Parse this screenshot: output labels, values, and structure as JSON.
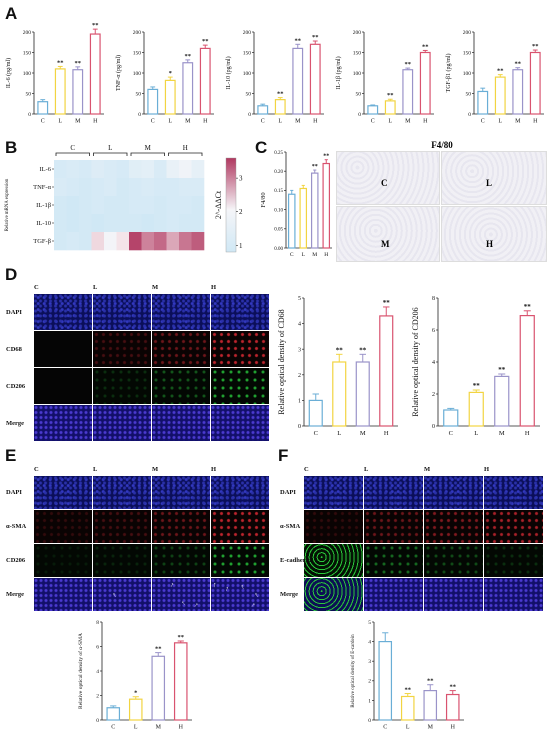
{
  "panels": {
    "A": "A",
    "B": "B",
    "C": "C",
    "D": "D",
    "E": "E",
    "F": "F"
  },
  "groups": [
    "C",
    "L",
    "M",
    "H"
  ],
  "colors": {
    "C": "#6aaed6",
    "L": "#f2d441",
    "M": "#9a93c9",
    "H": "#d9536f"
  },
  "panel_a_charts": [
    {
      "type": "bar",
      "categories": [
        "C",
        "L",
        "M",
        "H"
      ],
      "values": [
        30,
        110,
        108,
        195
      ],
      "errors": [
        5,
        6,
        7,
        12
      ],
      "sig": [
        "",
        "**",
        "**",
        "**"
      ],
      "ylabel": "IL-6 (pg/ml)",
      "yticks": [
        0,
        50,
        100,
        150,
        200
      ],
      "ylim": [
        0,
        200
      ]
    },
    {
      "type": "bar",
      "categories": [
        "C",
        "L",
        "M",
        "H"
      ],
      "values": [
        60,
        82,
        125,
        160
      ],
      "errors": [
        6,
        8,
        7,
        8
      ],
      "sig": [
        "",
        "*",
        "**",
        "**"
      ],
      "ylabel": "TNF-α (pg/ml)",
      "yticks": [
        0,
        50,
        100,
        150,
        200
      ],
      "ylim": [
        0,
        200
      ]
    },
    {
      "type": "bar",
      "categories": [
        "C",
        "L",
        "M",
        "H"
      ],
      "values": [
        20,
        35,
        160,
        170
      ],
      "errors": [
        4,
        5,
        10,
        8
      ],
      "sig": [
        "",
        "**",
        "**",
        "**"
      ],
      "ylabel": "IL-10 (pg/ml)",
      "yticks": [
        0,
        50,
        100,
        150,
        200
      ],
      "ylim": [
        0,
        200
      ]
    },
    {
      "type": "bar",
      "categories": [
        "C",
        "L",
        "M",
        "H"
      ],
      "values": [
        20,
        32,
        108,
        150
      ],
      "errors": [
        2,
        4,
        4,
        5
      ],
      "sig": [
        "",
        "**",
        "**",
        "**"
      ],
      "ylabel": "IL-1β (pg/ml)",
      "yticks": [
        0,
        50,
        100,
        150,
        200
      ],
      "ylim": [
        0,
        200
      ]
    },
    {
      "type": "bar",
      "categories": [
        "C",
        "L",
        "M",
        "H"
      ],
      "values": [
        55,
        90,
        108,
        150
      ],
      "errors": [
        8,
        6,
        5,
        6
      ],
      "sig": [
        "",
        "**",
        "**",
        "**"
      ],
      "ylabel": "TGF-β1 (pg/ml)",
      "yticks": [
        0,
        50,
        100,
        150,
        200
      ],
      "ylim": [
        0,
        200
      ]
    }
  ],
  "panel_b": {
    "chart_data": {
      "type": "heatmap",
      "rows": [
        "IL-6",
        "TNF-α",
        "IL-1β",
        "IL-10",
        "TGF-β"
      ],
      "group_labels": [
        "C",
        "L",
        "M",
        "H"
      ],
      "values": [
        [
          1.2,
          1.3,
          1.2,
          1.4,
          1.3,
          1.2,
          1.5,
          1.6,
          1.3,
          1.8,
          2.0,
          1.7
        ],
        [
          1.3,
          1.2,
          1.1,
          1.2,
          1.3,
          1.1,
          1.2,
          1.3,
          1.2,
          1.2,
          1.3,
          1.3
        ],
        [
          1.1,
          1.0,
          1.1,
          1.2,
          1.1,
          1.1,
          1.2,
          1.2,
          1.1,
          1.2,
          1.2,
          1.1
        ],
        [
          1.1,
          1.0,
          1.1,
          1.0,
          1.1,
          1.1,
          1.1,
          1.0,
          1.1,
          1.2,
          1.1,
          1.1
        ],
        [
          1.1,
          1.2,
          1.1,
          2.3,
          2.1,
          2.2,
          3.5,
          3.0,
          3.2,
          2.7,
          3.1,
          3.3
        ]
      ],
      "colorbar_ticks": [
        1,
        2,
        3
      ],
      "colorbar_label": "2^-ΔΔCt",
      "ylabel": "Relative mRNA expression"
    }
  },
  "panel_c": {
    "chart_data": {
      "type": "bar",
      "title": "F4/80",
      "categories": [
        "C",
        "L",
        "M",
        "H"
      ],
      "values": [
        0.14,
        0.155,
        0.195,
        0.22
      ],
      "errors": [
        0.01,
        0.008,
        0.008,
        0.01
      ],
      "sig": [
        "",
        "",
        "**",
        "**"
      ],
      "ylabel": "F4/80",
      "yticks": [
        0.0,
        0.05,
        0.1,
        0.15,
        0.2,
        0.25
      ],
      "ytick_labels": [
        "0.00",
        "0.05",
        "0.10",
        "0.15",
        "0.20",
        "0.25"
      ],
      "ylim": [
        0,
        0.25
      ]
    },
    "ihc_title": "F4/80",
    "ihc_labels": [
      "C",
      "L",
      "M",
      "H"
    ]
  },
  "panel_d": {
    "columns": [
      "C",
      "L",
      "M",
      "H"
    ],
    "rows": [
      "DAPI",
      "CD68",
      "CD206",
      "Merge"
    ],
    "charts": [
      {
        "type": "bar",
        "categories": [
          "C",
          "L",
          "M",
          "H"
        ],
        "values": [
          1.0,
          2.5,
          2.5,
          4.3
        ],
        "errors": [
          0.25,
          0.3,
          0.3,
          0.35
        ],
        "sig": [
          "",
          "**",
          "**",
          "**"
        ],
        "ylabel": "Relative optical density of CD68",
        "yticks": [
          0,
          1,
          2,
          3,
          4,
          5
        ],
        "ylim": [
          0,
          5
        ]
      },
      {
        "type": "bar",
        "categories": [
          "C",
          "L",
          "M",
          "H"
        ],
        "values": [
          1.0,
          2.1,
          3.1,
          6.9
        ],
        "errors": [
          0.1,
          0.15,
          0.15,
          0.3
        ],
        "sig": [
          "",
          "**",
          "**",
          "**"
        ],
        "ylabel": "Relative optical density of CD206",
        "yticks": [
          0,
          2,
          4,
          6,
          8
        ],
        "ylim": [
          0,
          8
        ]
      }
    ]
  },
  "panel_e": {
    "columns": [
      "C",
      "L",
      "M",
      "H"
    ],
    "rows": [
      "DAPI",
      "α-SMA",
      "CD206",
      "Merge"
    ],
    "chart": {
      "type": "bar",
      "categories": [
        "C",
        "L",
        "M",
        "H"
      ],
      "values": [
        1.0,
        1.7,
        5.2,
        6.3
      ],
      "errors": [
        0.15,
        0.2,
        0.3,
        0.15
      ],
      "sig": [
        "",
        "*",
        "**",
        "**"
      ],
      "ylabel": "Relative optical density of α-SMA",
      "yticks": [
        0,
        2,
        4,
        6,
        8
      ],
      "ylim": [
        0,
        8
      ]
    }
  },
  "panel_f": {
    "columns": [
      "C",
      "L",
      "M",
      "H"
    ],
    "rows": [
      "DAPI",
      "α-SMA",
      "E-cadherin",
      "Merge"
    ],
    "chart": {
      "type": "bar",
      "categories": [
        "C",
        "L",
        "M",
        "H"
      ],
      "values": [
        4.0,
        1.2,
        1.5,
        1.3
      ],
      "errors": [
        0.45,
        0.15,
        0.3,
        0.2
      ],
      "sig": [
        "",
        "**",
        "**",
        "**"
      ],
      "ylabel": "Relative optical density of E-cardein",
      "yticks": [
        0,
        1,
        2,
        3,
        4,
        5
      ],
      "ylim": [
        0,
        5
      ]
    }
  }
}
